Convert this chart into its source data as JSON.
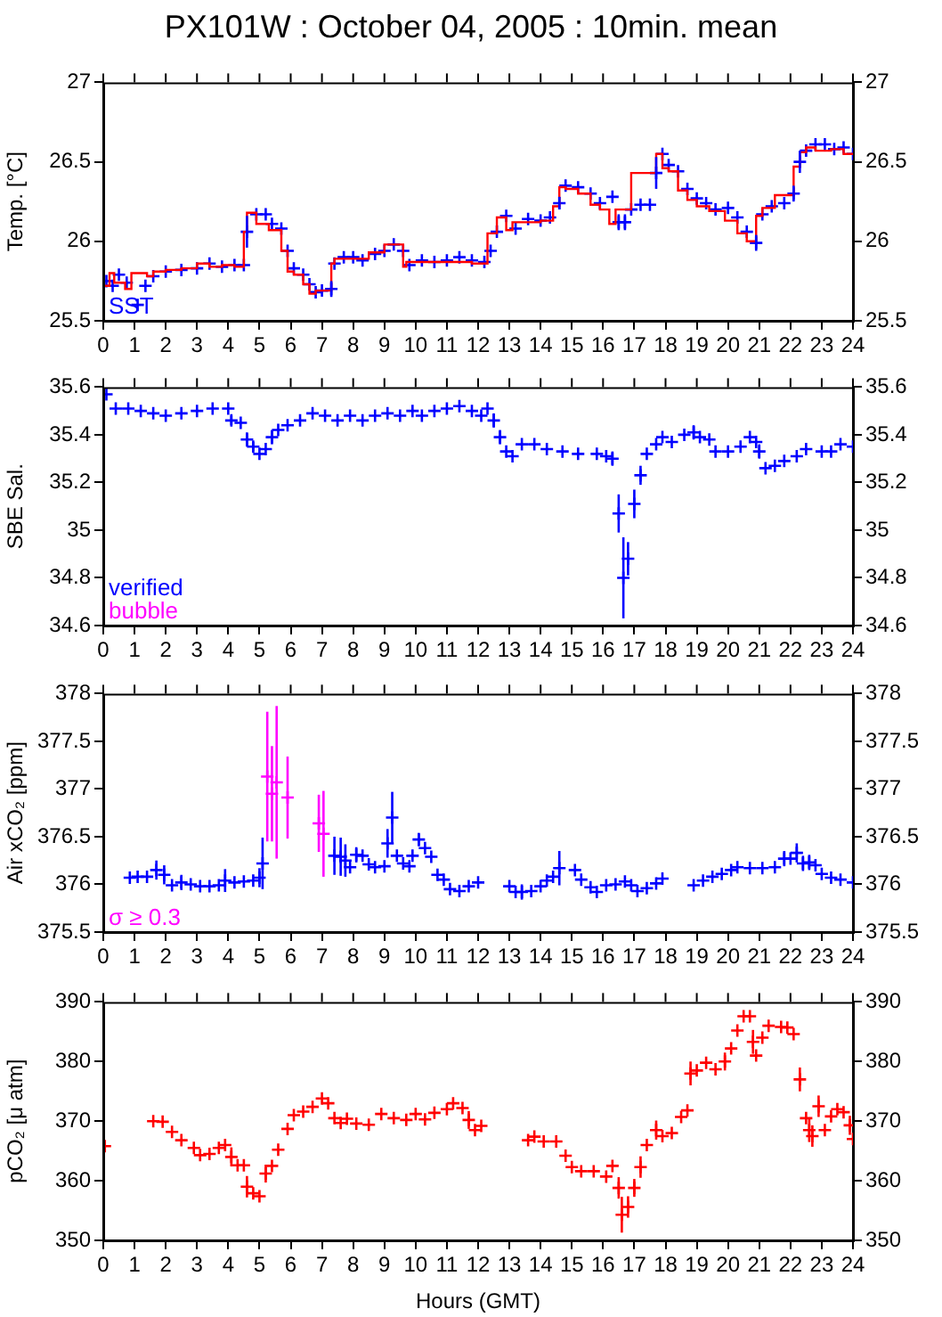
{
  "chart_data": [
    {
      "type": "scatter",
      "title": "PX101W : October 04, 2005 : 10min. mean",
      "ylabel": "Temp. [°C]",
      "legend": "bottom left",
      "xlim": [
        0,
        24
      ],
      "xticks": [
        0,
        1,
        2,
        3,
        4,
        5,
        6,
        7,
        8,
        9,
        10,
        11,
        12,
        13,
        14,
        15,
        16,
        17,
        18,
        19,
        20,
        21,
        22,
        23,
        24
      ],
      "ylim": [
        25.5,
        27
      ],
      "yticks": [
        25.5,
        26,
        26.5,
        27
      ],
      "y2lim": [
        25.5,
        27
      ],
      "y2ticks": [
        25.5,
        26,
        26.5,
        27
      ],
      "series": [
        {
          "type": "step",
          "color": "#ff0000",
          "x": [
            0,
            0.2,
            0.35,
            0.7,
            0.9,
            1.4,
            1.6,
            2,
            2.5,
            3,
            3.4,
            3.8,
            4.2,
            4.5,
            4.6,
            4.9,
            5.3,
            5.7,
            5.9,
            6.1,
            6.4,
            6.6,
            6.8,
            7.3,
            7.4,
            7.7,
            8,
            8.5,
            9,
            9.3,
            9.6,
            9.7,
            10.2,
            11,
            11.8,
            12.3,
            12.6,
            12.9,
            13.1,
            13.6,
            14,
            14.4,
            14.6,
            14.8,
            15.2,
            15.6,
            15.9,
            16.2,
            16.4,
            16.9,
            17.7,
            17.9,
            18.1,
            18.4,
            18.7,
            19,
            19.4,
            19.9,
            20.3,
            20.6,
            20.9,
            21.1,
            21.5,
            22.1,
            22.3,
            22.5,
            22.8,
            23.3,
            23.7,
            24
          ],
          "values": [
            25.74,
            25.72,
            25.8,
            25.74,
            25.7,
            25.8,
            25.78,
            25.81,
            25.82,
            25.83,
            25.86,
            25.84,
            25.85,
            25.84,
            26.06,
            26.18,
            26.11,
            26.07,
            25.94,
            25.81,
            25.79,
            25.73,
            25.67,
            25.69,
            25.86,
            25.89,
            25.89,
            25.89,
            25.93,
            25.98,
            25.98,
            25.84,
            25.87,
            25.87,
            25.87,
            25.86,
            26.05,
            26.15,
            26.07,
            26.12,
            26.12,
            26.13,
            26.22,
            26.34,
            26.33,
            26.3,
            26.23,
            26.2,
            26.11,
            26.2,
            26.43,
            26.55,
            26.46,
            26.44,
            26.32,
            26.26,
            26.22,
            26.19,
            26.13,
            26.05,
            26,
            26.16,
            26.21,
            26.29,
            26.47,
            26.56,
            26.59,
            26.57,
            26.58,
            26.55
          ]
        },
        {
          "name": "SST",
          "color": "#0000ff",
          "marker": "cross",
          "x": [
            0.1,
            0.3,
            0.5,
            0.75,
            1.1,
            1.35,
            1.6,
            2,
            2.5,
            3,
            3.4,
            3.8,
            4.2,
            4.5,
            4.6,
            4.9,
            5.2,
            5.4,
            5.7,
            5.9,
            6.1,
            6.4,
            6.6,
            6.8,
            7,
            7.3,
            7.4,
            7.7,
            8,
            8.3,
            8.7,
            9,
            9.3,
            9.6,
            9.8,
            10.2,
            10.6,
            11,
            11.4,
            11.8,
            12.2,
            12.4,
            12.6,
            12.9,
            13.2,
            13.6,
            14,
            14.3,
            14.6,
            14.8,
            15.2,
            15.6,
            15.9,
            16.3,
            16.5,
            16.7,
            16.9,
            17.2,
            17.5,
            17.7,
            17.9,
            18.1,
            18.4,
            18.7,
            19,
            19.3,
            19.6,
            20,
            20.3,
            20.6,
            20.9,
            21.1,
            21.4,
            21.8,
            22.1,
            22.3,
            22.5,
            22.8,
            23.1,
            23.4,
            23.7,
            24
          ],
          "values": [
            25.75,
            25.72,
            25.79,
            25.74,
            25.6,
            25.72,
            25.78,
            25.81,
            25.82,
            25.83,
            25.86,
            25.84,
            25.85,
            25.85,
            26.06,
            26.17,
            26.17,
            26.11,
            26.08,
            25.94,
            25.83,
            25.79,
            25.73,
            25.68,
            25.69,
            25.7,
            25.86,
            25.9,
            25.9,
            25.88,
            25.92,
            25.94,
            25.98,
            25.94,
            25.85,
            25.88,
            25.87,
            25.88,
            25.9,
            25.88,
            25.87,
            25.94,
            26.06,
            26.16,
            26.08,
            26.14,
            26.13,
            26.15,
            26.24,
            26.35,
            26.34,
            26.3,
            26.24,
            26.28,
            26.12,
            26.12,
            26.2,
            26.23,
            26.23,
            26.43,
            26.55,
            26.48,
            26.44,
            26.33,
            26.27,
            26.24,
            26.2,
            26.21,
            26.15,
            26.06,
            25.99,
            26.17,
            26.22,
            26.24,
            26.3,
            26.5,
            26.57,
            26.61,
            26.61,
            26.58,
            26.59,
            26.55
          ],
          "errors": [
            null,
            null,
            null,
            null,
            null,
            null,
            null,
            null,
            null,
            null,
            null,
            null,
            null,
            null,
            0.1,
            null,
            null,
            null,
            null,
            null,
            null,
            null,
            null,
            null,
            null,
            0.05,
            null,
            null,
            null,
            null,
            null,
            null,
            null,
            null,
            null,
            null,
            null,
            null,
            null,
            null,
            null,
            null,
            null,
            null,
            null,
            null,
            null,
            null,
            0.04,
            null,
            null,
            null,
            null,
            null,
            0.05,
            0.05,
            null,
            null,
            null,
            0.1,
            null,
            null,
            null,
            null,
            null,
            null,
            null,
            null,
            null,
            null,
            0.05,
            null,
            null,
            null,
            0.05,
            0.07,
            null,
            null,
            null,
            null,
            null,
            null
          ]
        }
      ]
    },
    {
      "type": "scatter",
      "ylabel": "SBE Sal.",
      "marker": "cross",
      "legend": "bottom left",
      "xlim": [
        0,
        24
      ],
      "xticks": [
        0,
        1,
        2,
        3,
        4,
        5,
        6,
        7,
        8,
        9,
        10,
        11,
        12,
        13,
        14,
        15,
        16,
        17,
        18,
        19,
        20,
        21,
        22,
        23,
        24
      ],
      "ylim": [
        34.6,
        35.6
      ],
      "yticks": [
        34.6,
        34.8,
        35,
        35.2,
        35.4,
        35.6
      ],
      "y2lim": [
        34.6,
        35.6
      ],
      "y2ticks": [
        34.6,
        34.8,
        35,
        35.2,
        35.4,
        35.6
      ],
      "series": [
        {
          "name": "verified",
          "color": "#0000ff",
          "x": [
            0.1,
            0.4,
            0.8,
            1.2,
            1.6,
            2,
            2.5,
            3,
            3.5,
            4,
            4.1,
            4.4,
            4.6,
            4.8,
            5,
            5.2,
            5.4,
            5.6,
            5.9,
            6.3,
            6.7,
            7.1,
            7.5,
            7.9,
            8.3,
            8.7,
            9.1,
            9.5,
            9.9,
            10.2,
            10.6,
            11,
            11.4,
            11.8,
            12.1,
            12.3,
            12.5,
            12.7,
            12.9,
            13.1,
            13.4,
            13.8,
            14.2,
            14.7,
            15.2,
            15.8,
            16.1,
            16.3,
            16.5,
            16.65,
            16.8,
            17,
            17.2,
            17.4,
            17.7,
            17.9,
            18.2,
            18.6,
            18.9,
            19.1,
            19.4,
            19.6,
            20,
            20.4,
            20.7,
            20.9,
            21,
            21.2,
            21.5,
            21.8,
            22.2,
            22.5,
            23,
            23.3,
            23.6,
            24
          ],
          "values": [
            35.57,
            35.51,
            35.51,
            35.5,
            35.49,
            35.48,
            35.49,
            35.5,
            35.51,
            35.51,
            35.46,
            35.45,
            35.38,
            35.35,
            35.32,
            35.34,
            35.39,
            35.42,
            35.44,
            35.46,
            35.49,
            35.48,
            35.46,
            35.48,
            35.46,
            35.48,
            35.49,
            35.48,
            35.5,
            35.48,
            35.5,
            35.51,
            35.52,
            35.5,
            35.48,
            35.51,
            35.46,
            35.39,
            35.33,
            35.31,
            35.36,
            35.36,
            35.34,
            35.33,
            35.32,
            35.32,
            35.31,
            35.3,
            35.07,
            34.8,
            34.88,
            35.11,
            35.23,
            35.32,
            35.36,
            35.39,
            35.37,
            35.4,
            35.41,
            35.39,
            35.38,
            35.33,
            35.33,
            35.35,
            35.39,
            35.37,
            35.33,
            35.26,
            35.27,
            35.29,
            35.31,
            35.34,
            35.33,
            35.33,
            35.36,
            35.35
          ],
          "errors": [
            null,
            null,
            null,
            null,
            null,
            null,
            null,
            null,
            null,
            null,
            0.02,
            null,
            0.03,
            0.02,
            null,
            null,
            0.03,
            null,
            null,
            null,
            null,
            null,
            null,
            null,
            null,
            null,
            null,
            null,
            null,
            null,
            null,
            null,
            null,
            null,
            null,
            null,
            0.03,
            0.03,
            null,
            null,
            null,
            null,
            null,
            null,
            null,
            null,
            null,
            0.03,
            0.08,
            0.17,
            0.07,
            0.06,
            0.04,
            null,
            null,
            null,
            null,
            null,
            0.03,
            null,
            null,
            null,
            null,
            null,
            null,
            null,
            0.03,
            null,
            null,
            null,
            null,
            null,
            null,
            null,
            null,
            null
          ]
        },
        {
          "name": "bubble",
          "color": "#ff00ff"
        }
      ]
    },
    {
      "type": "scatter",
      "ylabel": "Air xCO₂ [ppm]",
      "marker": "cross",
      "legend": "bottom left",
      "xlim": [
        0,
        24
      ],
      "xticks": [
        0,
        1,
        2,
        3,
        4,
        5,
        6,
        7,
        8,
        9,
        10,
        11,
        12,
        13,
        14,
        15,
        16,
        17,
        18,
        19,
        20,
        21,
        22,
        23,
        24
      ],
      "ylim": [
        375.5,
        378
      ],
      "yticks": [
        375.5,
        376,
        376.5,
        377,
        377.5,
        378
      ],
      "y2lim": [
        375.5,
        378
      ],
      "y2ticks": [
        375.5,
        376,
        376.5,
        377,
        377.5,
        378
      ],
      "series": [
        {
          "color": "#0000ff",
          "x": [
            0.85,
            1.1,
            1.4,
            1.7,
            1.95,
            2.2,
            2.5,
            2.8,
            3.1,
            3.4,
            3.7,
            3.9,
            4.2,
            4.5,
            4.8,
            5,
            5.1,
            7.4,
            7.6,
            7.75,
            7.9,
            8.1,
            8.3,
            8.5,
            8.7,
            9,
            9.1,
            9.25,
            9.4,
            9.6,
            9.8,
            9.9,
            10.1,
            10.3,
            10.5,
            10.7,
            10.9,
            11.1,
            11.4,
            11.7,
            12,
            13,
            13.2,
            13.4,
            13.7,
            14,
            14.2,
            14.4,
            14.6,
            15.1,
            15.3,
            15.6,
            15.8,
            16.1,
            16.4,
            16.7,
            16.9,
            17.1,
            17.4,
            17.7,
            17.9,
            18.9,
            19.2,
            19.5,
            19.8,
            20.1,
            20.3,
            20.7,
            21.1,
            21.5,
            21.8,
            22,
            22.2,
            22.4,
            22.6,
            22.8,
            23,
            23.3,
            23.6,
            24
          ],
          "values": [
            376.07,
            376.08,
            376.08,
            376.15,
            376.1,
            375.99,
            376.02,
            376,
            375.98,
            375.98,
            375.99,
            376.04,
            376.02,
            376.03,
            376.04,
            376.07,
            376.22,
            376.3,
            376.29,
            376.25,
            376.18,
            376.31,
            376.3,
            376.21,
            376.18,
            376.19,
            376.43,
            376.7,
            376.3,
            376.22,
            376.19,
            376.3,
            376.47,
            376.38,
            376.29,
            376.1,
            376.05,
            375.95,
            375.93,
            375.98,
            376.02,
            375.98,
            375.92,
            375.92,
            375.93,
            375.98,
            376.04,
            376.08,
            376.17,
            376.15,
            376.05,
            375.97,
            375.92,
            375.99,
            376,
            376.03,
            375.99,
            375.93,
            375.96,
            376.01,
            376.06,
            375.99,
            376.04,
            376.08,
            376.11,
            376.15,
            376.18,
            376.17,
            376.17,
            376.18,
            376.27,
            376.27,
            376.33,
            376.22,
            376.23,
            376.2,
            376.11,
            376.07,
            376.05,
            376.02
          ],
          "errors": [
            null,
            null,
            null,
            0.1,
            0.1,
            null,
            0.08,
            null,
            null,
            null,
            null,
            0.12,
            null,
            null,
            null,
            0.1,
            0.27,
            0.2,
            0.2,
            0.17,
            null,
            0.08,
            null,
            null,
            null,
            null,
            0.15,
            0.27,
            null,
            null,
            null,
            null,
            0.07,
            null,
            null,
            null,
            null,
            null,
            null,
            null,
            null,
            null,
            null,
            0.08,
            null,
            null,
            null,
            null,
            0.18,
            null,
            null,
            null,
            null,
            null,
            null,
            null,
            null,
            null,
            null,
            null,
            null,
            null,
            null,
            null,
            null,
            null,
            null,
            null,
            null,
            null,
            0.08,
            null,
            0.1,
            0.08,
            0.08,
            null,
            null,
            null,
            null,
            null
          ]
        },
        {
          "name": "σ ≥ 0.3",
          "color": "#ff00ff",
          "x": [
            5.25,
            5.4,
            5.55,
            5.9,
            6.9,
            7.05
          ],
          "values": [
            377.13,
            376.95,
            377.07,
            376.91,
            376.64,
            376.53
          ],
          "errors": [
            0.68,
            0.5,
            0.8,
            0.43,
            0.3,
            0.45
          ]
        }
      ]
    },
    {
      "type": "scatter",
      "ylabel": "pCO₂ [μ atm]",
      "xlabel": "Hours (GMT)",
      "marker": "cross",
      "xlim": [
        0,
        24
      ],
      "xticks": [
        0,
        1,
        2,
        3,
        4,
        5,
        6,
        7,
        8,
        9,
        10,
        11,
        12,
        13,
        14,
        15,
        16,
        17,
        18,
        19,
        20,
        21,
        22,
        23,
        24
      ],
      "ylim": [
        350,
        390
      ],
      "yticks": [
        350,
        360,
        370,
        380,
        390
      ],
      "y2lim": [
        350,
        390
      ],
      "y2ticks": [
        350,
        360,
        370,
        380,
        390
      ],
      "series": [
        {
          "color": "#ff0000",
          "x": [
            0.05,
            1.6,
            1.9,
            2.2,
            2.5,
            2.9,
            3.1,
            3.4,
            3.7,
            3.9,
            4.1,
            4.3,
            4.5,
            4.6,
            4.8,
            5,
            5.2,
            5.4,
            5.6,
            5.9,
            6.1,
            6.4,
            6.7,
            7,
            7.2,
            7.4,
            7.6,
            7.8,
            8.1,
            8.5,
            8.9,
            9.3,
            9.7,
            10,
            10.3,
            10.6,
            11,
            11.2,
            11.5,
            11.7,
            11.9,
            12.1,
            13.6,
            13.8,
            14.1,
            14.5,
            14.8,
            15,
            15.3,
            15.7,
            16.1,
            16.3,
            16.5,
            16.6,
            16.8,
            17,
            17.2,
            17.4,
            17.7,
            17.9,
            18.2,
            18.5,
            18.7,
            18.8,
            19,
            19.3,
            19.6,
            19.9,
            20.1,
            20.3,
            20.5,
            20.7,
            20.8,
            20.9,
            21.1,
            21.3,
            21.7,
            21.9,
            22.1,
            22.3,
            22.5,
            22.6,
            22.7,
            22.9,
            23.1,
            23.3,
            23.5,
            23.7,
            23.9,
            24
          ],
          "values": [
            365.8,
            370,
            369.9,
            368.2,
            366.8,
            365.5,
            364.3,
            364.5,
            365.5,
            366,
            364,
            362.6,
            362.6,
            359,
            357.9,
            357.4,
            361.2,
            362.5,
            365.2,
            368.7,
            371,
            371.6,
            372.4,
            373.8,
            373,
            370.5,
            369.7,
            370.4,
            369.6,
            369.4,
            371.2,
            370.5,
            370.2,
            371.2,
            370.3,
            371.4,
            372,
            373,
            372.2,
            370.2,
            368.5,
            369.2,
            366.8,
            367.4,
            366.6,
            366.6,
            364.2,
            362.3,
            361.6,
            361.6,
            360.7,
            362.5,
            358.8,
            354.3,
            355.6,
            358.8,
            362.3,
            366,
            368.5,
            367.5,
            368,
            370.7,
            371.8,
            378,
            378.5,
            379.8,
            378.7,
            380,
            382.2,
            385.2,
            387.6,
            387.6,
            383.3,
            381,
            384,
            386,
            385.8,
            385.7,
            384.6,
            377,
            370.5,
            368.5,
            367.5,
            372.5,
            368.5,
            370.8,
            372,
            371.5,
            369.3,
            367
          ],
          "errors": [
            null,
            null,
            null,
            null,
            null,
            null,
            null,
            null,
            null,
            null,
            1.6,
            null,
            null,
            1.8,
            null,
            null,
            1.5,
            null,
            null,
            null,
            null,
            null,
            null,
            null,
            null,
            null,
            null,
            null,
            null,
            null,
            null,
            null,
            null,
            null,
            null,
            null,
            null,
            null,
            null,
            1.5,
            null,
            null,
            null,
            null,
            null,
            null,
            null,
            null,
            null,
            null,
            null,
            null,
            1.8,
            3,
            1.8,
            1.5,
            1.8,
            null,
            1.6,
            null,
            null,
            null,
            null,
            2,
            null,
            null,
            null,
            1.5,
            null,
            null,
            null,
            null,
            2,
            null,
            null,
            null,
            null,
            null,
            null,
            2,
            null,
            2,
            1.8,
            1.8,
            null,
            null,
            null,
            null,
            1.6,
            null
          ]
        }
      ]
    }
  ]
}
